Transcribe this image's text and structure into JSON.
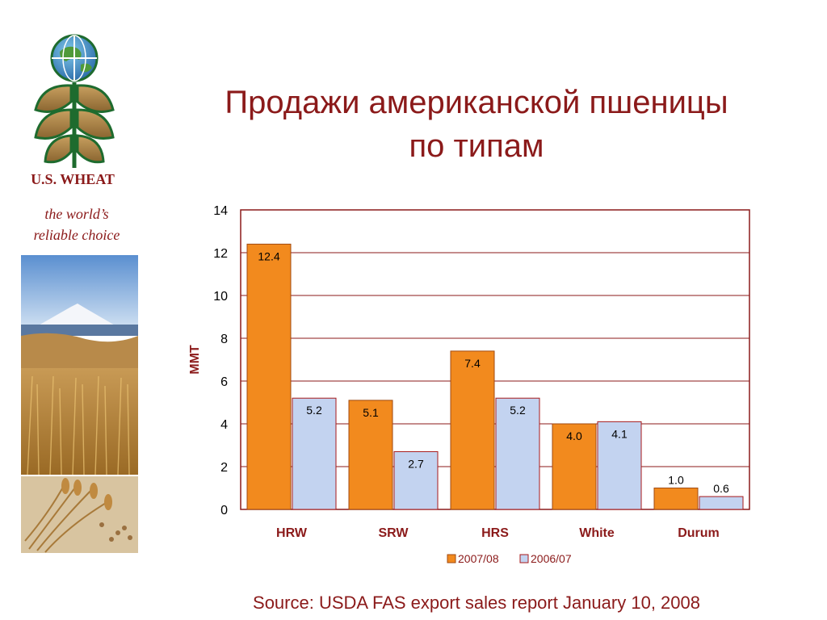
{
  "sidebar": {
    "brand": "U.S. WHEAT",
    "tagline_line1": "the world’s",
    "tagline_line2": "reliable choice",
    "logo_icon": "us-wheat-globe-logo-icon"
  },
  "slide": {
    "title_line1": "Продажи американской пшеницы",
    "title_line2": "по типам",
    "source": "Source:  USDA FAS export sales report January 10, 2008"
  },
  "colors": {
    "accent": "#8b1a1a",
    "series_2007": "#f28a1e",
    "series_2006": "#c3d3f0"
  },
  "chart_data": {
    "type": "bar",
    "categories": [
      "HRW",
      "SRW",
      "HRS",
      "White",
      "Durum"
    ],
    "series": [
      {
        "name": "2007/08",
        "values": [
          12.4,
          5.1,
          7.4,
          4.0,
          1.0
        ],
        "labels": [
          "12.4",
          "5.1",
          "7.4",
          "4.0",
          "1.0"
        ]
      },
      {
        "name": "2006/07",
        "values": [
          5.2,
          2.7,
          5.2,
          4.1,
          0.6
        ],
        "labels": [
          "5.2",
          "2.7",
          "5.2",
          "4.1",
          "0.6"
        ]
      }
    ],
    "ylabel": "MMT",
    "ylim": [
      0,
      14
    ],
    "yticks": [
      0,
      2,
      4,
      6,
      8,
      10,
      12,
      14
    ],
    "grid": true,
    "legend": "bottom"
  }
}
